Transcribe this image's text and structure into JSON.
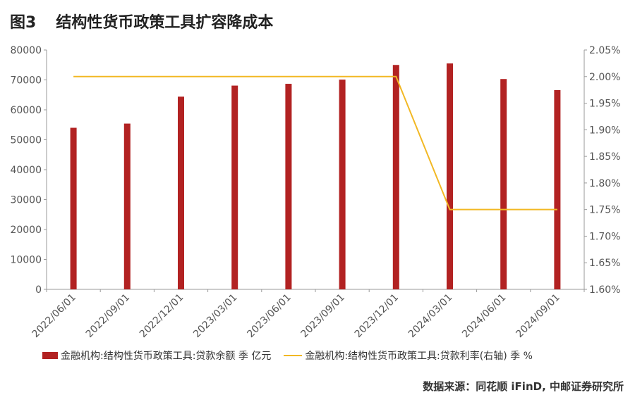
{
  "figure": {
    "number": "图3",
    "title": "结构性货币政策工具扩容降成本"
  },
  "source": "数据来源：同花顺 iFinD, 中邮证券研究所",
  "colors": {
    "bar": "#B22222",
    "line": "#F2B824",
    "axis": "#999999"
  },
  "chart_data": {
    "type": "bar",
    "categories": [
      "2022/06/01",
      "2022/09/01",
      "2022/12/01",
      "2023/03/01",
      "2023/06/01",
      "2023/09/01",
      "2023/12/01",
      "2024/03/01",
      "2024/06/01",
      "2024/09/01"
    ],
    "series": [
      {
        "name": "金融机构:结构性货币政策工具:贷款余额 季 亿元",
        "type": "bar",
        "axis": "left",
        "values": [
          54000,
          55400,
          64400,
          68100,
          68700,
          70100,
          75000,
          75500,
          70300,
          66600
        ]
      },
      {
        "name": "金融机构:结构性货币政策工具:贷款利率(右轴) 季 %",
        "type": "line",
        "axis": "right",
        "values": [
          2.0,
          2.0,
          2.0,
          2.0,
          2.0,
          2.0,
          2.0,
          1.75,
          1.75,
          1.75
        ]
      }
    ],
    "ylim": [
      0,
      80000
    ],
    "yticks": [
      "0",
      "10000",
      "20000",
      "30000",
      "40000",
      "50000",
      "60000",
      "70000",
      "80000"
    ],
    "y2lim": [
      1.6,
      2.05
    ],
    "y2ticks": [
      "1.60%",
      "1.65%",
      "1.70%",
      "1.75%",
      "1.80%",
      "1.85%",
      "1.90%",
      "1.95%",
      "2.00%",
      "2.05%"
    ],
    "grid": false,
    "legend_position": "bottom"
  }
}
